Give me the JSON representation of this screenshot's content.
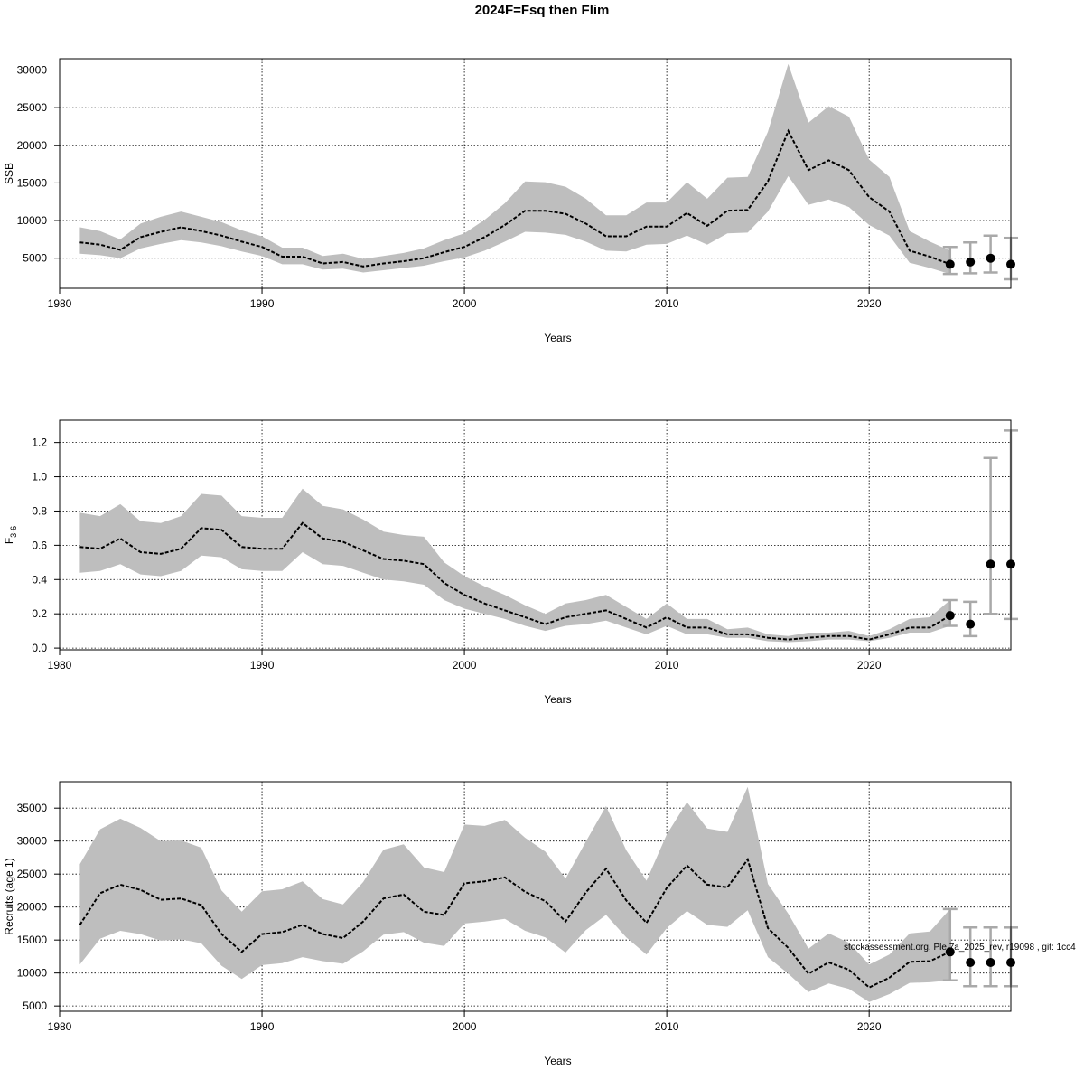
{
  "page": {
    "title": "2024F=Fsq then Flim",
    "footer": "stockassessment.org, Ple.7a_2025_rev, r19098 , git: 1cc4"
  },
  "colors": {
    "band": "#bebebe",
    "errbar": "#a9a9a9",
    "line": "#000000"
  },
  "chart_data": [
    {
      "type": "line",
      "ylabel": "SSB",
      "xlabel": "Years",
      "xlim": [
        1980,
        2027
      ],
      "xticks": [
        1980,
        1990,
        2000,
        2010,
        2020
      ],
      "ylim": [
        1000,
        31500
      ],
      "yticks": [
        5000,
        10000,
        15000,
        20000,
        25000,
        30000
      ],
      "grid": true,
      "years": [
        1981,
        1982,
        1983,
        1984,
        1985,
        1986,
        1987,
        1988,
        1989,
        1990,
        1991,
        1992,
        1993,
        1994,
        1995,
        1996,
        1997,
        1998,
        1999,
        2000,
        2001,
        2002,
        2003,
        2004,
        2005,
        2006,
        2007,
        2008,
        2009,
        2010,
        2011,
        2012,
        2013,
        2014,
        2015,
        2016,
        2017,
        2018,
        2019,
        2020,
        2021,
        2022,
        2023,
        2024
      ],
      "estimate": [
        7100,
        6800,
        6100,
        7800,
        8500,
        9100,
        8600,
        8000,
        7200,
        6500,
        5200,
        5200,
        4300,
        4500,
        3900,
        4300,
        4600,
        5000,
        5800,
        6500,
        7800,
        9400,
        11300,
        11300,
        10900,
        9600,
        7900,
        7900,
        9200,
        9200,
        11000,
        9300,
        11300,
        11400,
        15200,
        21900,
        16700,
        18000,
        16700,
        13100,
        11200,
        6000,
        5200,
        4200
      ],
      "lower": [
        5600,
        5400,
        5000,
        6300,
        6900,
        7400,
        7100,
        6600,
        5900,
        5300,
        4200,
        4200,
        3500,
        3600,
        3100,
        3400,
        3700,
        4000,
        4600,
        5100,
        6000,
        7200,
        8500,
        8400,
        8100,
        7200,
        6000,
        5900,
        6800,
        6900,
        8000,
        6800,
        8300,
        8400,
        11200,
        15900,
        12100,
        12800,
        11800,
        9400,
        8000,
        4400,
        3700,
        2900
      ],
      "upper": [
        9100,
        8600,
        7500,
        9600,
        10500,
        11200,
        10500,
        9800,
        8700,
        7900,
        6400,
        6400,
        5300,
        5600,
        4900,
        5300,
        5700,
        6300,
        7400,
        8300,
        10100,
        12300,
        15200,
        15100,
        14500,
        12900,
        10700,
        10700,
        12400,
        12400,
        15100,
        12900,
        15700,
        15800,
        21800,
        30800,
        23000,
        25200,
        23800,
        18100,
        15800,
        8600,
        7200,
        6000
      ],
      "forecast": {
        "years": [
          2024,
          2025,
          2026,
          2027
        ],
        "values": [
          4200,
          4500,
          5000,
          4200
        ],
        "lower": [
          2900,
          3000,
          3100,
          2200
        ],
        "upper": [
          6500,
          7100,
          8000,
          7700
        ]
      }
    },
    {
      "type": "line",
      "ylabel": "F",
      "ylabel_subscript": "3-6",
      "xlabel": "Years",
      "xlim": [
        1980,
        2027
      ],
      "xticks": [
        1980,
        1990,
        2000,
        2010,
        2020
      ],
      "ylim": [
        -0.01,
        1.33
      ],
      "yticks": [
        0.0,
        0.2,
        0.4,
        0.6,
        0.8,
        1.0,
        1.2
      ],
      "ytick_labels": [
        "0.0",
        "0.2",
        "0.4",
        "0.6",
        "0.8",
        "1.0",
        "1.2"
      ],
      "grid": true,
      "years": [
        1981,
        1982,
        1983,
        1984,
        1985,
        1986,
        1987,
        1988,
        1989,
        1990,
        1991,
        1992,
        1993,
        1994,
        1995,
        1996,
        1997,
        1998,
        1999,
        2000,
        2001,
        2002,
        2003,
        2004,
        2005,
        2006,
        2007,
        2008,
        2009,
        2010,
        2011,
        2012,
        2013,
        2014,
        2015,
        2016,
        2017,
        2018,
        2019,
        2020,
        2021,
        2022,
        2023,
        2024
      ],
      "estimate": [
        0.59,
        0.58,
        0.64,
        0.56,
        0.55,
        0.58,
        0.7,
        0.69,
        0.59,
        0.58,
        0.58,
        0.73,
        0.64,
        0.62,
        0.57,
        0.52,
        0.51,
        0.49,
        0.38,
        0.31,
        0.26,
        0.22,
        0.18,
        0.14,
        0.18,
        0.2,
        0.22,
        0.17,
        0.12,
        0.18,
        0.12,
        0.12,
        0.08,
        0.08,
        0.06,
        0.05,
        0.06,
        0.07,
        0.07,
        0.05,
        0.08,
        0.12,
        0.12,
        0.19
      ],
      "lower": [
        0.44,
        0.45,
        0.49,
        0.43,
        0.42,
        0.45,
        0.54,
        0.53,
        0.46,
        0.45,
        0.45,
        0.56,
        0.49,
        0.48,
        0.44,
        0.4,
        0.39,
        0.37,
        0.28,
        0.23,
        0.2,
        0.17,
        0.13,
        0.1,
        0.13,
        0.14,
        0.16,
        0.12,
        0.08,
        0.13,
        0.08,
        0.08,
        0.06,
        0.06,
        0.04,
        0.035,
        0.04,
        0.05,
        0.05,
        0.04,
        0.06,
        0.09,
        0.09,
        0.13
      ],
      "upper": [
        0.79,
        0.77,
        0.84,
        0.74,
        0.73,
        0.77,
        0.9,
        0.89,
        0.77,
        0.76,
        0.76,
        0.93,
        0.83,
        0.81,
        0.75,
        0.68,
        0.66,
        0.65,
        0.5,
        0.42,
        0.36,
        0.31,
        0.25,
        0.2,
        0.26,
        0.28,
        0.31,
        0.24,
        0.17,
        0.26,
        0.17,
        0.17,
        0.11,
        0.12,
        0.08,
        0.07,
        0.09,
        0.09,
        0.1,
        0.07,
        0.11,
        0.17,
        0.18,
        0.28
      ],
      "forecast": {
        "years": [
          2024,
          2025,
          2026,
          2027
        ],
        "values": [
          0.19,
          0.14,
          0.49,
          0.49
        ],
        "lower": [
          0.13,
          0.07,
          0.2,
          0.17
        ],
        "upper": [
          0.28,
          0.27,
          1.11,
          1.27
        ]
      }
    },
    {
      "type": "line",
      "ylabel": "Recruits (age 1)",
      "xlabel": "Years",
      "xlim": [
        1980,
        2027
      ],
      "xticks": [
        1980,
        1990,
        2000,
        2010,
        2020
      ],
      "ylim": [
        4200,
        39000
      ],
      "yticks": [
        5000,
        10000,
        15000,
        20000,
        25000,
        30000,
        35000
      ],
      "grid": true,
      "years": [
        1981,
        1982,
        1983,
        1984,
        1985,
        1986,
        1987,
        1988,
        1989,
        1990,
        1991,
        1992,
        1993,
        1994,
        1995,
        1996,
        1997,
        1998,
        1999,
        2000,
        2001,
        2002,
        2003,
        2004,
        2005,
        2006,
        2007,
        2008,
        2009,
        2010,
        2011,
        2012,
        2013,
        2014,
        2015,
        2016,
        2017,
        2018,
        2019,
        2020,
        2021,
        2022,
        2023,
        2024
      ],
      "estimate": [
        17300,
        22100,
        23400,
        22600,
        21100,
        21300,
        20300,
        15900,
        13200,
        15900,
        16200,
        17300,
        15900,
        15300,
        17800,
        21300,
        21900,
        19300,
        18800,
        23600,
        23900,
        24500,
        22300,
        20900,
        17800,
        22200,
        25800,
        21000,
        17600,
        22900,
        26300,
        23400,
        23000,
        27200,
        16800,
        13800,
        9900,
        11600,
        10500,
        7800,
        9300,
        11700,
        11800,
        13200
      ],
      "lower": [
        11300,
        15200,
        16400,
        15900,
        14900,
        15100,
        14500,
        11100,
        9100,
        11200,
        11500,
        12400,
        11800,
        11400,
        13300,
        15800,
        16200,
        14600,
        14100,
        17500,
        17800,
        18200,
        16400,
        15400,
        13100,
        16500,
        18800,
        15400,
        12800,
        16800,
        19400,
        17300,
        17000,
        19500,
        12400,
        9900,
        7100,
        8400,
        7600,
        5600,
        6800,
        8500,
        8600,
        8900
      ],
      "upper": [
        26500,
        31800,
        33400,
        32000,
        30000,
        30100,
        29000,
        22500,
        19300,
        22400,
        22700,
        23900,
        21200,
        20400,
        23800,
        28700,
        29500,
        26000,
        25300,
        32500,
        32300,
        33200,
        30500,
        28400,
        24300,
        29900,
        35300,
        28600,
        24000,
        31000,
        35900,
        31900,
        31400,
        38200,
        23500,
        19000,
        13700,
        16000,
        14600,
        11300,
        12800,
        16000,
        16300,
        19700
      ],
      "forecast": {
        "years": [
          2024,
          2025,
          2026,
          2027
        ],
        "values": [
          13200,
          11600,
          11600,
          11600
        ],
        "lower": [
          8900,
          8000,
          8000,
          8000
        ],
        "upper": [
          19700,
          16900,
          16900,
          16900
        ]
      }
    }
  ]
}
